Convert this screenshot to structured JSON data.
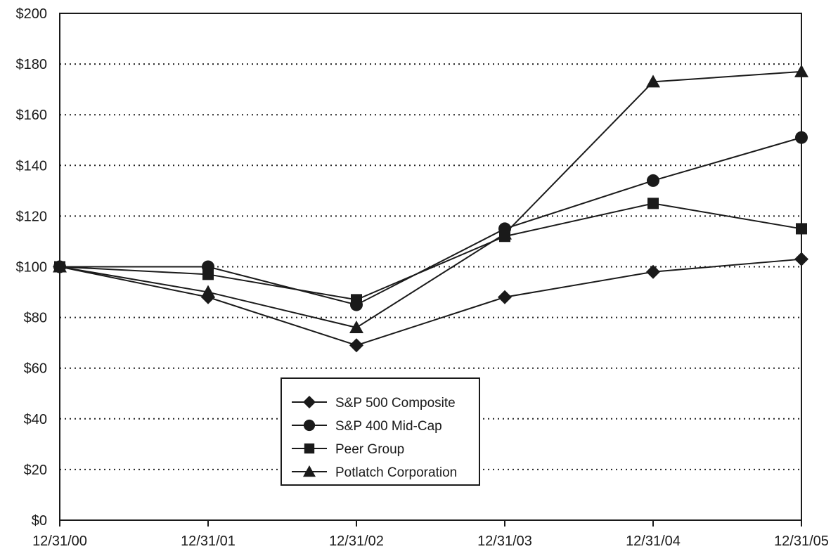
{
  "chart_data": {
    "type": "line",
    "title": "",
    "xlabel": "",
    "ylabel": "",
    "x": [
      "12/31/00",
      "12/31/01",
      "12/31/02",
      "12/31/03",
      "12/31/04",
      "12/31/05"
    ],
    "ylim": [
      0,
      200
    ],
    "y_ticks": [
      0,
      20,
      40,
      60,
      80,
      100,
      120,
      140,
      160,
      180,
      200
    ],
    "y_tick_labels": [
      "$0",
      "$20",
      "$40",
      "$60",
      "$80",
      "$100",
      "$120",
      "$140",
      "$160",
      "$180",
      "$200"
    ],
    "grid": "horizontal dotted",
    "legend_position": "bottom-center",
    "series": [
      {
        "name": "S&P 500 Composite",
        "marker": "diamond",
        "values": [
          100,
          88,
          69,
          88,
          98,
          103
        ]
      },
      {
        "name": "S&P 400 Mid-Cap",
        "marker": "circle",
        "values": [
          100,
          100,
          85,
          115,
          134,
          151
        ]
      },
      {
        "name": "Peer Group",
        "marker": "square",
        "values": [
          100,
          97,
          87,
          112,
          125,
          115
        ]
      },
      {
        "name": "Potlatch Corporation",
        "marker": "triangle",
        "values": [
          100,
          90,
          76,
          113,
          173,
          177
        ]
      }
    ]
  }
}
